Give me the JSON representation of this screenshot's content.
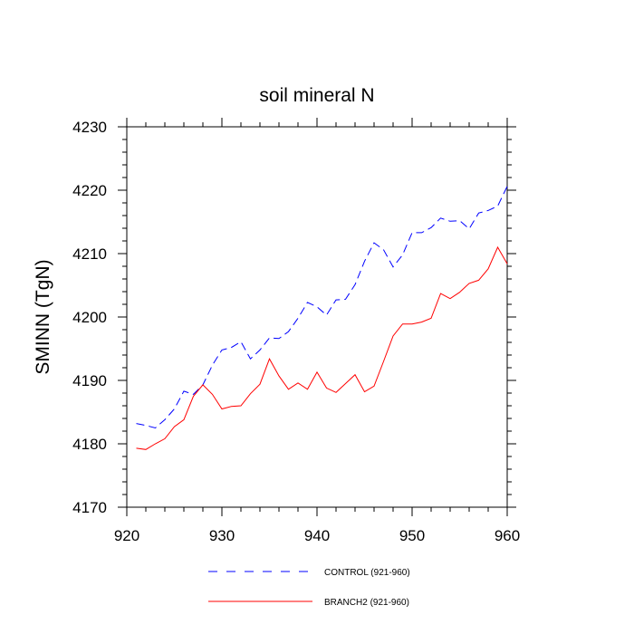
{
  "chart_data": {
    "type": "line",
    "title": "soil mineral N",
    "xlabel": "",
    "ylabel": "SMINN  (TgN)",
    "xlim": [
      920,
      960
    ],
    "ylim": [
      4170,
      4230
    ],
    "x_ticks": [
      920,
      930,
      940,
      950,
      960
    ],
    "y_ticks": [
      4170,
      4180,
      4190,
      4200,
      4210,
      4220,
      4230
    ],
    "x": [
      921,
      922,
      923,
      924,
      925,
      926,
      927,
      928,
      929,
      930,
      931,
      932,
      933,
      934,
      935,
      936,
      937,
      938,
      939,
      940,
      941,
      942,
      943,
      944,
      945,
      946,
      947,
      948,
      949,
      950,
      951,
      952,
      953,
      954,
      955,
      956,
      957,
      958,
      959,
      960
    ],
    "series": [
      {
        "name": "CONTROL (921-960)",
        "color": "#0000ff",
        "dash": "dashed",
        "values": [
          4183.2,
          4182.9,
          4182.5,
          4183.8,
          4185.5,
          4188.3,
          4187.8,
          4189.3,
          4192.4,
          4194.8,
          4195.2,
          4196.1,
          4193.4,
          4194.8,
          4196.7,
          4196.6,
          4197.7,
          4199.8,
          4202.3,
          4201.6,
          4200.3,
          4202.7,
          4202.8,
          4205.1,
          4208.8,
          4211.7,
          4210.6,
          4207.9,
          4209.8,
          4213.3,
          4213.3,
          4214.1,
          4215.6,
          4215.1,
          4215.2,
          4213.9,
          4216.4,
          4216.8,
          4217.5,
          4220.6
        ]
      },
      {
        "name": "BRANCH2 (921-960)",
        "color": "#ff0000",
        "dash": "solid",
        "values": [
          4179.3,
          4179.1,
          4180.0,
          4180.8,
          4182.7,
          4183.8,
          4187.5,
          4189.3,
          4187.8,
          4185.5,
          4185.9,
          4186.0,
          4187.9,
          4189.4,
          4193.4,
          4190.7,
          4188.6,
          4189.6,
          4188.6,
          4191.3,
          4188.8,
          4188.1,
          4189.5,
          4190.9,
          4188.2,
          4189.1,
          4193.0,
          4197.0,
          4198.9,
          4198.9,
          4199.2,
          4199.8,
          4203.7,
          4202.9,
          4203.9,
          4205.3,
          4205.8,
          4207.6,
          4211.0,
          4208.4
        ]
      }
    ]
  }
}
